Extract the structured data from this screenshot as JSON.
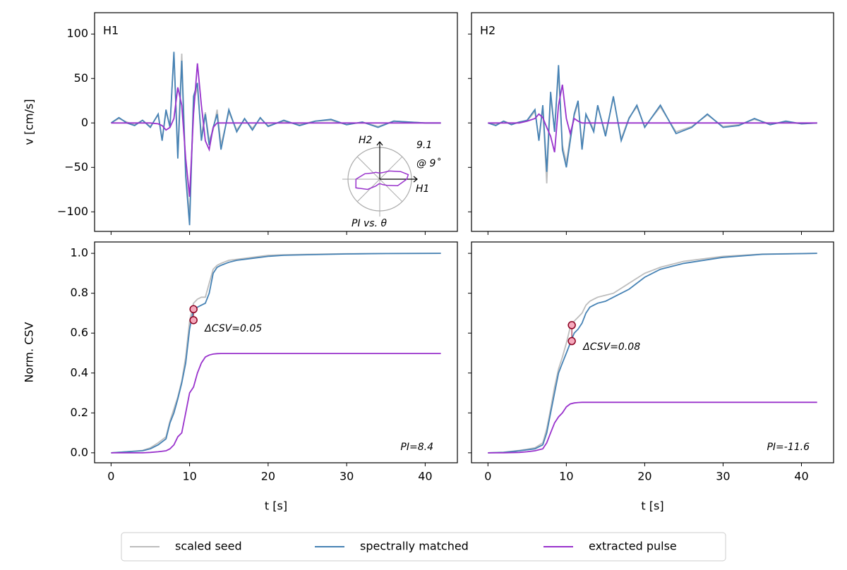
{
  "chart_data": [
    {
      "type": "line",
      "panel_label": "H1",
      "ylabel": "v [cm/s]",
      "x": [
        0,
        1,
        2,
        3,
        4,
        5,
        6,
        6.5,
        7,
        7.5,
        8,
        8.5,
        9,
        9.5,
        10,
        10.5,
        11,
        11.5,
        12,
        12.5,
        13,
        13.5,
        14,
        15,
        16,
        17,
        18,
        19,
        20,
        22,
        24,
        26,
        28,
        30,
        32,
        34,
        36,
        38,
        40,
        42
      ],
      "series": [
        {
          "name": "scaled seed",
          "color": "#bdbdbd",
          "values": [
            0,
            5,
            1,
            -2,
            3,
            -4,
            9,
            -18,
            12,
            -3,
            78,
            -35,
            78,
            -55,
            -105,
            25,
            40,
            -15,
            12,
            -20,
            -8,
            15,
            -25,
            12,
            -8,
            4,
            -6,
            5,
            -3,
            2,
            -2,
            2,
            3,
            -2,
            1,
            -4,
            2,
            1,
            0,
            0
          ]
        },
        {
          "name": "spectrally matched",
          "color": "#4682b4",
          "values": [
            0,
            6,
            0,
            -3,
            3,
            -5,
            10,
            -20,
            15,
            -5,
            80,
            -40,
            70,
            -60,
            -115,
            30,
            45,
            -20,
            10,
            -25,
            -5,
            10,
            -30,
            15,
            -10,
            5,
            -8,
            6,
            -4,
            3,
            -3,
            2,
            4,
            -2,
            1,
            -5,
            2,
            1,
            0,
            0
          ]
        },
        {
          "name": "extracted pulse",
          "color": "#9932cc",
          "values": [
            0,
            0,
            0,
            0,
            0,
            0,
            -1,
            -3,
            -8,
            -5,
            5,
            40,
            20,
            -40,
            -83,
            10,
            67,
            20,
            -20,
            -30,
            -5,
            0,
            0,
            0,
            0,
            0,
            0,
            0,
            0,
            0,
            0,
            0,
            0,
            0,
            0,
            0,
            0,
            0,
            0,
            0
          ]
        }
      ],
      "xlim": [
        -2.1,
        44.1
      ],
      "ylim": [
        -122,
        124
      ],
      "xticks": [
        0,
        10,
        20,
        30,
        40
      ],
      "yticks": [
        {
          "value": -100,
          "label": "−100"
        },
        {
          "value": -50,
          "label": "−50"
        },
        0,
        50,
        100
      ],
      "inset": {
        "title": "PI vs. θ",
        "x_axis_label": "H1",
        "y_axis_label": "H2",
        "theta": [
          0,
          9,
          20,
          40,
          60,
          80,
          100,
          120,
          140,
          160,
          180,
          200,
          220,
          240,
          260,
          280,
          300,
          320,
          340
        ],
        "r": [
          8.5,
          9.1,
          7,
          4,
          2.5,
          2,
          2,
          2.5,
          3,
          5,
          7.5,
          8,
          5,
          2.5,
          1.5,
          1.5,
          2,
          3,
          6
        ],
        "rlim": [
          0,
          10
        ],
        "color": "#9932cc",
        "peak_value": "9.1",
        "peak_angle": "@ 9˚",
        "peak_color": "#e6199b"
      }
    },
    {
      "type": "line",
      "panel_label": "H2",
      "x": [
        0,
        1,
        2,
        3,
        4,
        5,
        6,
        6.5,
        7,
        7.5,
        8,
        8.5,
        9,
        9.5,
        10,
        10.5,
        11,
        11.5,
        12,
        12.5,
        13,
        13.5,
        14,
        15,
        16,
        17,
        18,
        19,
        20,
        22,
        24,
        26,
        28,
        30,
        32,
        34,
        36,
        38,
        40,
        42
      ],
      "series": [
        {
          "color": "#bdbdbd",
          "values": [
            0,
            -2,
            2,
            -1,
            1,
            2,
            13,
            -18,
            18,
            -68,
            30,
            -8,
            58,
            -25,
            -45,
            -15,
            8,
            22,
            -25,
            8,
            2,
            -8,
            18,
            -12,
            28,
            -18,
            6,
            18,
            -4,
            18,
            -10,
            -4,
            9,
            -4,
            -2,
            4,
            -1,
            1,
            -1,
            0
          ]
        },
        {
          "color": "#4682b4",
          "values": [
            0,
            -3,
            2,
            -2,
            1,
            3,
            15,
            -20,
            20,
            -55,
            35,
            -10,
            65,
            -30,
            -50,
            -20,
            10,
            25,
            -30,
            10,
            0,
            -10,
            20,
            -15,
            30,
            -20,
            5,
            20,
            -5,
            20,
            -12,
            -5,
            10,
            -5,
            -3,
            5,
            -2,
            2,
            -1,
            0
          ]
        },
        {
          "color": "#9932cc",
          "values": [
            0,
            0,
            0,
            0,
            0,
            2,
            5,
            10,
            6,
            -5,
            -15,
            -33,
            20,
            43,
            5,
            -12,
            5,
            2,
            0,
            0,
            0,
            0,
            0,
            0,
            0,
            0,
            0,
            0,
            0,
            0,
            0,
            0,
            0,
            0,
            0,
            0,
            0,
            0,
            0,
            0
          ]
        }
      ],
      "xlim": [
        -2.1,
        44.1
      ],
      "ylim": [
        -122,
        124
      ],
      "xticks": [
        0,
        10,
        20,
        30,
        40
      ],
      "yticks": [
        {
          "value": -100,
          "label": "−100"
        },
        {
          "value": -50,
          "label": "−50"
        },
        0,
        50,
        100
      ]
    },
    {
      "type": "line",
      "ylabel": "Norm. CSV",
      "xlabel": "t [s]",
      "x": [
        0,
        2,
        4,
        5,
        6,
        7,
        7.5,
        8,
        8.5,
        9,
        9.5,
        10,
        10.5,
        11,
        11.5,
        12,
        12.5,
        13,
        13.5,
        14,
        15,
        16,
        18,
        20,
        22,
        25,
        30,
        35,
        42
      ],
      "series": [
        {
          "color": "#bdbdbd",
          "values": [
            0,
            0.005,
            0.012,
            0.025,
            0.05,
            0.08,
            0.16,
            0.22,
            0.28,
            0.36,
            0.48,
            0.66,
            0.75,
            0.77,
            0.78,
            0.78,
            0.85,
            0.92,
            0.94,
            0.95,
            0.965,
            0.97,
            0.98,
            0.99,
            0.993,
            0.995,
            0.998,
            0.999,
            1.0
          ]
        },
        {
          "color": "#4682b4",
          "values": [
            0,
            0.005,
            0.01,
            0.02,
            0.04,
            0.07,
            0.15,
            0.2,
            0.27,
            0.35,
            0.45,
            0.62,
            0.72,
            0.73,
            0.74,
            0.75,
            0.8,
            0.9,
            0.93,
            0.94,
            0.955,
            0.965,
            0.975,
            0.985,
            0.99,
            0.993,
            0.997,
            0.999,
            1.0
          ]
        },
        {
          "color": "#9932cc",
          "values": [
            0,
            0,
            0,
            0.002,
            0.005,
            0.01,
            0.02,
            0.04,
            0.08,
            0.1,
            0.2,
            0.3,
            0.33,
            0.4,
            0.45,
            0.48,
            0.49,
            0.495,
            0.497,
            0.498,
            0.498,
            0.498,
            0.498,
            0.498,
            0.498,
            0.498,
            0.498,
            0.498,
            0.498
          ]
        }
      ],
      "xlim": [
        -2.1,
        44.1
      ],
      "ylim": [
        -0.05,
        1.057
      ],
      "xticks": [
        0,
        10,
        20,
        30,
        40
      ],
      "yticks": [
        {
          "value": 0,
          "label": "0.0"
        },
        0.2,
        0.4,
        0.6,
        0.8,
        {
          "value": 1,
          "label": "1.0"
        }
      ],
      "points": {
        "x": [
          10.5,
          10.5
        ],
        "values": [
          0.72,
          0.665
        ]
      },
      "delta_label": "ΔCSV=0.05",
      "pi_label": "PI=8.4"
    },
    {
      "type": "line",
      "xlabel": "t [s]",
      "x": [
        0,
        2,
        4,
        5,
        6,
        7,
        7.5,
        8,
        8.5,
        9,
        9.5,
        10,
        10.5,
        11,
        11.5,
        12,
        12.5,
        13,
        13.5,
        14,
        15,
        16,
        18,
        20,
        22,
        25,
        30,
        35,
        42
      ],
      "series": [
        {
          "color": "#bdbdbd",
          "values": [
            0,
            0.003,
            0.012,
            0.018,
            0.025,
            0.05,
            0.12,
            0.22,
            0.33,
            0.42,
            0.48,
            0.55,
            0.63,
            0.66,
            0.68,
            0.7,
            0.74,
            0.76,
            0.77,
            0.78,
            0.79,
            0.8,
            0.85,
            0.9,
            0.93,
            0.96,
            0.985,
            0.996,
            1.0
          ]
        },
        {
          "color": "#4682b4",
          "values": [
            0,
            0.002,
            0.01,
            0.015,
            0.02,
            0.04,
            0.1,
            0.2,
            0.3,
            0.4,
            0.45,
            0.5,
            0.55,
            0.6,
            0.62,
            0.65,
            0.7,
            0.73,
            0.74,
            0.75,
            0.76,
            0.78,
            0.82,
            0.88,
            0.92,
            0.95,
            0.98,
            0.995,
            1.0
          ]
        },
        {
          "color": "#9932cc",
          "values": [
            0,
            0,
            0.002,
            0.005,
            0.01,
            0.02,
            0.05,
            0.1,
            0.15,
            0.18,
            0.2,
            0.23,
            0.245,
            0.25,
            0.252,
            0.253,
            0.253,
            0.253,
            0.253,
            0.253,
            0.253,
            0.253,
            0.253,
            0.253,
            0.253,
            0.253,
            0.253,
            0.253,
            0.253
          ]
        }
      ],
      "xlim": [
        -2.1,
        44.1
      ],
      "ylim": [
        -0.05,
        1.057
      ],
      "xticks": [
        0,
        10,
        20,
        30,
        40
      ],
      "yticks": [
        {
          "value": 0,
          "label": "0.0"
        },
        0.2,
        0.4,
        0.6,
        0.8,
        {
          "value": 1,
          "label": "1.0"
        }
      ],
      "points": {
        "x": [
          10.7,
          10.7
        ],
        "values": [
          0.64,
          0.56
        ]
      },
      "delta_label": "ΔCSV=0.08",
      "pi_label": "PI=-11.6"
    }
  ]
}
